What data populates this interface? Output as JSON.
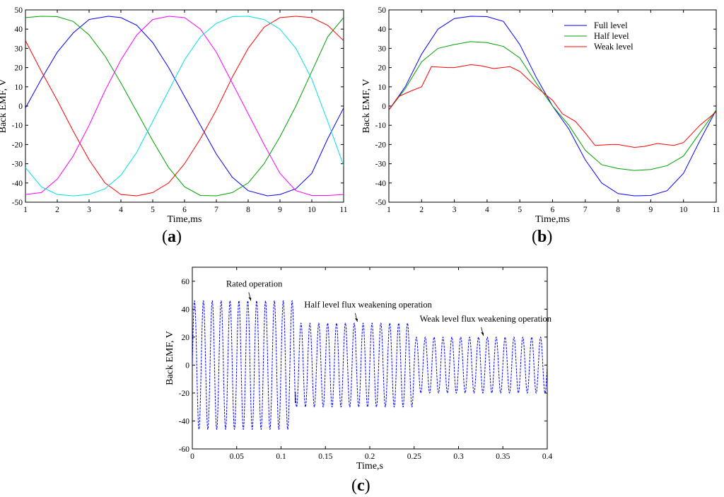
{
  "panels": {
    "a": {
      "label": "a"
    },
    "b": {
      "label": "b"
    },
    "c": {
      "label": "c"
    }
  },
  "chart_data": [
    {
      "id": "a",
      "type": "line",
      "xlabel": "Time,ms",
      "ylabel": "Back EMF, V",
      "xlim": [
        1,
        11
      ],
      "ylim": [
        -50,
        50
      ],
      "xticks": [
        1,
        2,
        3,
        4,
        5,
        6,
        7,
        8,
        9,
        10,
        11
      ],
      "yticks": [
        -50,
        -40,
        -30,
        -20,
        -10,
        0,
        10,
        20,
        30,
        40,
        50
      ],
      "grid": false,
      "legend": "none",
      "series": [
        {
          "color": "#0000ff",
          "x": [
            1,
            1.5,
            2,
            2.5,
            3,
            3.6,
            4,
            4.5,
            5,
            5.5,
            6,
            6.5,
            7,
            7.5,
            8,
            8.6,
            9,
            9.5,
            10,
            10.5,
            11
          ],
          "y": [
            -1,
            14,
            28,
            38,
            45,
            46.7,
            46,
            42,
            33,
            20,
            5,
            -10,
            -25,
            -37,
            -44,
            -46.7,
            -46,
            -43,
            -35,
            -17,
            -1
          ]
        },
        {
          "color": "#00a000",
          "x": [
            1,
            1.5,
            2,
            2.5,
            3,
            3.5,
            4,
            4.5,
            5,
            5.5,
            6,
            6.5,
            7,
            7.5,
            8,
            8.5,
            9,
            9.5,
            10,
            10.5,
            11
          ],
          "y": [
            46,
            46.7,
            46.5,
            44,
            37,
            26,
            12,
            -3,
            -18,
            -32,
            -42,
            -46.5,
            -46.7,
            -45,
            -40,
            -30,
            -16,
            0,
            18,
            36,
            46
          ]
        },
        {
          "color": "#ff0000",
          "x": [
            1,
            1.5,
            2,
            2.5,
            3,
            3.5,
            4,
            4.5,
            5,
            5.5,
            6,
            6.5,
            7,
            7.5,
            8,
            8.5,
            9,
            9.5,
            10,
            10.5,
            11
          ],
          "y": [
            34,
            18,
            3,
            -13,
            -28,
            -40,
            -46,
            -46.7,
            -45,
            -40,
            -30,
            -17,
            -2,
            15,
            30,
            41,
            46,
            46.7,
            46,
            42,
            34
          ]
        },
        {
          "color": "#ff00ff",
          "x": [
            1,
            1.5,
            2,
            2.5,
            3,
            3.5,
            4,
            4.5,
            5,
            5.5,
            6,
            6.5,
            7,
            7.5,
            8,
            8.5,
            9,
            9.5,
            10,
            10.5,
            11
          ],
          "y": [
            -46,
            -45,
            -38,
            -26,
            -10,
            8,
            24,
            37,
            45,
            46.7,
            46,
            40,
            28,
            12,
            -4,
            -20,
            -35,
            -44,
            -46.5,
            -46.5,
            -46
          ]
        },
        {
          "color": "#00e0e0",
          "x": [
            1,
            1.5,
            2,
            2.5,
            3,
            3.5,
            4,
            4.5,
            5,
            5.5,
            6,
            6.5,
            7,
            7.5,
            8,
            8.5,
            9,
            9.5,
            10,
            10.5,
            11
          ],
          "y": [
            -32,
            -42,
            -46,
            -46.7,
            -46,
            -43,
            -36,
            -24,
            -8,
            8,
            24,
            36,
            43,
            46.5,
            46.7,
            45,
            40,
            30,
            14,
            -8,
            -31
          ]
        }
      ]
    },
    {
      "id": "b",
      "type": "line",
      "xlabel": "Time,ms",
      "ylabel": "Back EMF, V",
      "xlim": [
        1,
        11
      ],
      "ylim": [
        -50,
        50
      ],
      "xticks": [
        1,
        2,
        3,
        4,
        5,
        6,
        7,
        8,
        9,
        10,
        11
      ],
      "yticks": [
        -50,
        -40,
        -30,
        -20,
        -10,
        0,
        10,
        20,
        30,
        40,
        50
      ],
      "grid": false,
      "legend": "top-right",
      "series": [
        {
          "name": "Full level",
          "color": "#0000ff",
          "x": [
            1,
            1.5,
            2,
            2.5,
            3,
            3.5,
            4,
            4.5,
            5,
            5.5,
            6,
            6.5,
            7,
            7.5,
            8,
            8.5,
            9,
            9.5,
            10,
            10.5,
            11
          ],
          "y": [
            -2,
            10,
            27,
            40,
            45.5,
            46.7,
            46.5,
            44,
            32,
            15,
            0,
            -12,
            -28,
            -40,
            -45.5,
            -46.7,
            -46.5,
            -44,
            -35,
            -18,
            -2
          ]
        },
        {
          "name": "Half level",
          "color": "#00a000",
          "x": [
            1,
            1.5,
            2,
            2.5,
            3,
            3.5,
            4,
            4.5,
            5,
            5.5,
            6,
            6.5,
            7,
            7.5,
            8,
            8.5,
            9,
            9.5,
            10,
            10.5,
            11
          ],
          "y": [
            -2,
            9,
            23,
            30,
            32,
            33.5,
            33,
            31,
            25,
            12,
            0,
            -10,
            -23,
            -30.5,
            -32.5,
            -33.5,
            -33,
            -31,
            -26,
            -14,
            -2
          ]
        },
        {
          "name": "Weak level",
          "color": "#ff0000",
          "x": [
            1,
            1.3,
            1.7,
            2,
            2.3,
            2.8,
            3,
            3.5,
            3.8,
            4.2,
            4.7,
            5,
            5.5,
            6,
            6.3,
            6.7,
            7,
            7.3,
            7.8,
            8,
            8.5,
            8.8,
            9.2,
            9.7,
            10,
            10.5,
            11
          ],
          "y": [
            -2,
            5,
            8,
            10,
            20.5,
            20,
            20,
            21.5,
            21,
            19.5,
            20.5,
            18,
            10,
            3,
            -4,
            -8,
            -14,
            -20.5,
            -20,
            -20,
            -21.5,
            -21,
            -19.5,
            -20.5,
            -19,
            -10,
            -3
          ]
        }
      ]
    },
    {
      "id": "c",
      "type": "line",
      "xlabel": "Time,s",
      "ylabel": "Back EMF, V",
      "xlim": [
        0,
        0.4
      ],
      "ylim": [
        -60,
        70
      ],
      "xticks": [
        0,
        0.05,
        0.1,
        0.15,
        0.2,
        0.25,
        0.3,
        0.35,
        0.4
      ],
      "yticks": [
        -60,
        -40,
        -20,
        0,
        20,
        40,
        60
      ],
      "grid": false,
      "legend": "none",
      "series": [
        {
          "color": "#0000ff",
          "style": "dashed",
          "frequency_hz": 100,
          "segments": [
            {
              "from": 0,
              "to": 0.116,
              "amplitude": 46
            },
            {
              "from": 0.116,
              "to": 0.25,
              "amplitude": 30
            },
            {
              "from": 0.25,
              "to": 0.4,
              "amplitude": 20
            }
          ]
        }
      ],
      "annotations": [
        {
          "text": "Rated operation",
          "x": 0.066,
          "y": 45
        },
        {
          "text": "Half level flux weakening operation",
          "x": 0.186,
          "y": 30
        },
        {
          "text": "Weak level flux weakening operation",
          "x": 0.328,
          "y": 20
        }
      ]
    }
  ]
}
